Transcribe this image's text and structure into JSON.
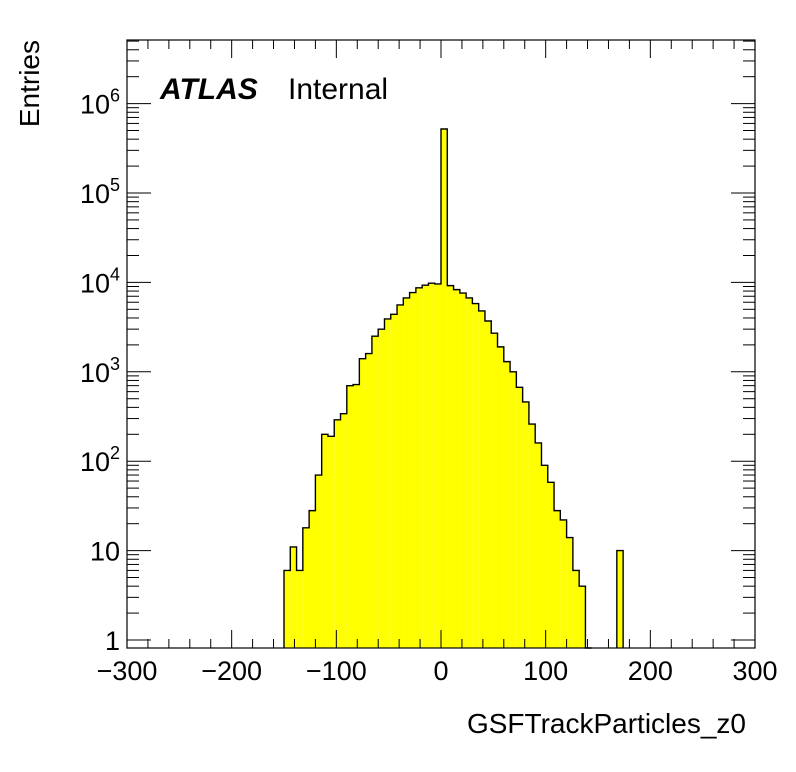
{
  "chart_data": {
    "type": "histogram",
    "title": "",
    "xlabel": "GSFTrackParticles_z0",
    "ylabel": "Entries",
    "yscale": "log",
    "xlim": [
      -300,
      300
    ],
    "ylim_decades": [
      0,
      6.7
    ],
    "x_ticks": [
      "−300",
      "−200",
      "−100",
      "0",
      "100",
      "200",
      "300"
    ],
    "x_tick_values": [
      -300,
      -200,
      -100,
      0,
      100,
      200,
      300
    ],
    "y_ticks": [
      {
        "base": "1",
        "exp": "",
        "value": 1
      },
      {
        "base": "10",
        "exp": "",
        "value": 10
      },
      {
        "base": "10",
        "exp": "2",
        "value": 100
      },
      {
        "base": "10",
        "exp": "3",
        "value": 1000
      },
      {
        "base": "10",
        "exp": "4",
        "value": 10000
      },
      {
        "base": "10",
        "exp": "5",
        "value": 100000
      },
      {
        "base": "10",
        "exp": "6",
        "value": 1000000
      }
    ],
    "bin_width": 6,
    "bin_low_edges": [
      -150,
      -144,
      -138,
      -132,
      -126,
      -120,
      -114,
      -108,
      -102,
      -96,
      -90,
      -84,
      -78,
      -72,
      -66,
      -60,
      -54,
      -48,
      -42,
      -36,
      -30,
      -24,
      -18,
      -12,
      -6,
      0,
      6,
      12,
      18,
      24,
      30,
      36,
      42,
      48,
      54,
      60,
      66,
      72,
      78,
      84,
      90,
      96,
      102,
      108,
      114,
      120,
      126,
      132,
      138,
      168
    ],
    "values": [
      6,
      11,
      6,
      18,
      28,
      70,
      200,
      190,
      290,
      340,
      700,
      720,
      1400,
      1600,
      2500,
      3000,
      3900,
      4400,
      5600,
      6700,
      7700,
      8700,
      9300,
      9800,
      9600,
      520000,
      9200,
      8300,
      7600,
      6700,
      5800,
      4800,
      3700,
      2700,
      1900,
      1300,
      1000,
      670,
      460,
      260,
      160,
      90,
      58,
      28,
      22,
      14,
      6,
      4,
      0,
      10
    ],
    "fill_color": "#ffff00",
    "line_color": "#000000",
    "label": {
      "bold": "ATLAS",
      "normal": "Internal"
    }
  }
}
